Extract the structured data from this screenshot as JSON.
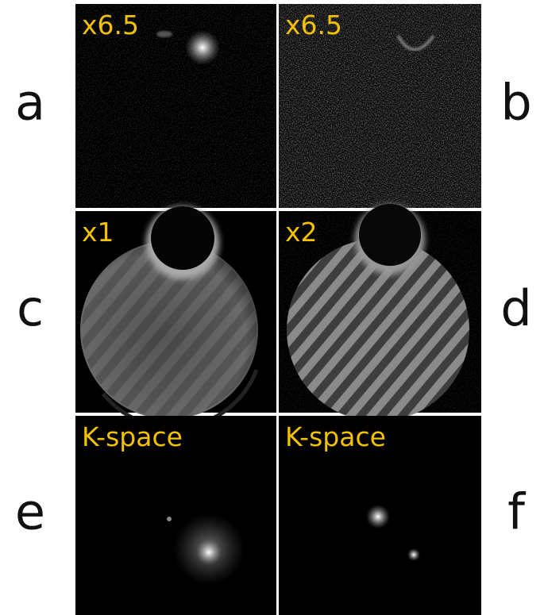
{
  "panels": [
    {
      "letter": "a",
      "label": "x6.5"
    },
    {
      "letter": "b",
      "label": "x6.5"
    },
    {
      "letter": "c",
      "label": "x1"
    },
    {
      "letter": "d",
      "label": "x2"
    },
    {
      "letter": "e",
      "label": "K-space"
    },
    {
      "letter": "f",
      "label": "K-space"
    }
  ]
}
